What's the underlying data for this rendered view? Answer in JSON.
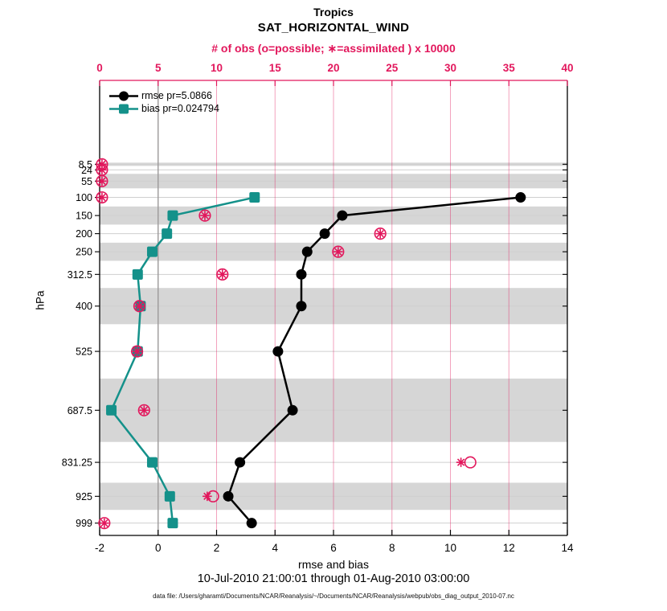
{
  "titles": {
    "region": "Tropics",
    "variable": "SAT_HORIZONTAL_WIND"
  },
  "date_range": "10-Jul-2010 21:00:01 through 01-Aug-2010 03:00:00",
  "data_file_note": "data file: /Users/gharamti/Documents/NCAR/Reanalysis/~/Documents/NCAR/Reanalysis/webpub/obs_diag_output_2010-07.nc",
  "colors": {
    "rmse": "#000000",
    "bias": "#14918a",
    "obs": "#e2175c",
    "band_gray": "#d6d6d6",
    "level_gridline": "#cfcfcf",
    "zero_line": "#9b9b9b",
    "obs_gridline": "rgba(226,23,92,0.4)"
  },
  "chart_data": {
    "type": "line",
    "profile": "pressure-vs-value",
    "y_axis": {
      "label": "hPa",
      "levels": [
        8.5,
        24,
        55,
        100,
        150,
        200,
        250,
        312.5,
        400,
        525,
        687.5,
        831.25,
        925,
        999
      ],
      "level_edges": [
        4,
        13,
        35,
        75,
        125,
        175,
        225,
        275,
        350,
        450,
        600,
        775,
        887.5,
        962.5,
        1035.5
      ],
      "shaded_layers": [
        0,
        2,
        4,
        6,
        8,
        10,
        12
      ],
      "ylim": [
        -223,
        1033
      ]
    },
    "x_bottom": {
      "label": "rmse and bias",
      "range": [
        -2,
        14
      ],
      "ticks": [
        -2,
        0,
        2,
        4,
        6,
        8,
        10,
        12,
        14
      ],
      "zero_reference": 0
    },
    "x_top": {
      "label": "# of obs (o=possible; ∗=assimilated ) x 10000",
      "range": [
        0,
        40
      ],
      "ticks": [
        0,
        5,
        10,
        15,
        20,
        25,
        30,
        35,
        40
      ]
    },
    "series": [
      {
        "name": "rmse pr=5.0866",
        "marker": "circle",
        "color": "#000000",
        "levels": [
          100,
          150,
          200,
          250,
          312.5,
          400,
          525,
          687.5,
          831.25,
          925,
          999
        ],
        "values": [
          12.4,
          6.3,
          5.7,
          5.1,
          4.9,
          4.9,
          4.1,
          4.6,
          2.8,
          2.4,
          3.2
        ]
      },
      {
        "name": "bias pr=0.024794",
        "marker": "square",
        "color": "#14918a",
        "levels": [
          100,
          150,
          200,
          250,
          312.5,
          400,
          525,
          687.5,
          831.25,
          925,
          999
        ],
        "values": [
          3.3,
          0.5,
          0.3,
          -0.2,
          -0.7,
          -0.6,
          -0.7,
          -1.6,
          -0.2,
          0.4,
          0.5
        ]
      }
    ],
    "obs_counts": {
      "units": "x 10000",
      "color": "#e2175c",
      "points": [
        {
          "level": 8.5,
          "possible": 0.2,
          "assimilated": 0.2
        },
        {
          "level": 24,
          "possible": 0.2,
          "assimilated": 0.2
        },
        {
          "level": 55,
          "possible": 0.2,
          "assimilated": 0.2
        },
        {
          "level": 100,
          "possible": 0.2,
          "assimilated": 0.2
        },
        {
          "level": 150,
          "possible": 9,
          "assimilated": 9
        },
        {
          "level": 200,
          "possible": 24,
          "assimilated": 24
        },
        {
          "level": 250,
          "possible": 20.4,
          "assimilated": 20.4
        },
        {
          "level": 312.5,
          "possible": 10.5,
          "assimilated": 10.5
        },
        {
          "level": 400,
          "possible": 3.4,
          "assimilated": 3.4
        },
        {
          "level": 525,
          "possible": 3.2,
          "assimilated": 3.2
        },
        {
          "level": 687.5,
          "possible": 3.8,
          "assimilated": 3.8
        },
        {
          "level": 831.25,
          "possible": 31.7,
          "assimilated": 30.9
        },
        {
          "level": 925,
          "possible": 9.7,
          "assimilated": 9.2
        },
        {
          "level": 999,
          "possible": 0.4,
          "assimilated": 0.4
        }
      ]
    }
  }
}
